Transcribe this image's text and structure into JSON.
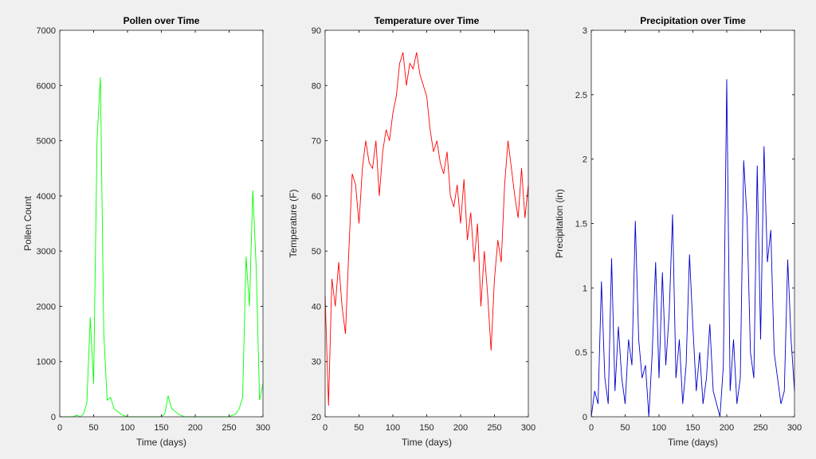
{
  "chart_data": [
    {
      "type": "line",
      "title": "Pollen over Time",
      "x_label": "Time (days)",
      "y_label": "Pollen Count",
      "x": [
        0,
        5,
        10,
        15,
        20,
        25,
        30,
        35,
        40,
        45,
        50,
        55,
        60,
        65,
        70,
        75,
        80,
        85,
        90,
        95,
        100,
        105,
        110,
        115,
        120,
        125,
        130,
        135,
        140,
        145,
        150,
        155,
        160,
        165,
        170,
        175,
        180,
        185,
        190,
        195,
        200,
        205,
        210,
        215,
        220,
        225,
        230,
        235,
        240,
        245,
        250,
        255,
        260,
        265,
        270,
        275,
        280,
        285,
        290,
        295,
        300
      ],
      "series": [
        {
          "color": "#00ff00",
          "values": [
            0,
            0,
            0,
            0,
            0,
            30,
            0,
            50,
            250,
            1800,
            600,
            5000,
            6150,
            1500,
            300,
            350,
            150,
            100,
            50,
            20,
            0,
            0,
            0,
            0,
            0,
            0,
            0,
            0,
            0,
            0,
            0,
            50,
            380,
            150,
            100,
            50,
            20,
            0,
            0,
            0,
            0,
            0,
            0,
            0,
            0,
            0,
            0,
            0,
            0,
            0,
            0,
            30,
            50,
            150,
            350,
            2900,
            2000,
            4100,
            2700,
            300,
            600
          ]
        }
      ],
      "xlim": [
        0,
        300
      ],
      "xticks": [
        0,
        50,
        100,
        150,
        200,
        250,
        300
      ],
      "ylim": [
        0,
        7000
      ],
      "yticks": [
        0,
        1000,
        2000,
        3000,
        4000,
        5000,
        6000,
        7000
      ]
    },
    {
      "type": "line",
      "title": "Temperature over Time",
      "x_label": "Time (days)",
      "y_label": "Temperature (F)",
      "x": [
        0,
        5,
        10,
        15,
        20,
        25,
        30,
        35,
        40,
        45,
        50,
        55,
        60,
        65,
        70,
        75,
        80,
        85,
        90,
        95,
        100,
        105,
        110,
        115,
        120,
        125,
        130,
        135,
        140,
        145,
        150,
        155,
        160,
        165,
        170,
        175,
        180,
        185,
        190,
        195,
        200,
        205,
        210,
        215,
        220,
        225,
        230,
        235,
        240,
        245,
        250,
        255,
        260,
        265,
        270,
        275,
        280,
        285,
        290,
        295,
        300
      ],
      "series": [
        {
          "color": "#ff0000",
          "values": [
            42,
            22,
            45,
            40,
            48,
            40,
            35,
            50,
            64,
            62,
            55,
            65,
            70,
            66,
            65,
            70,
            60,
            68,
            72,
            70,
            75,
            78,
            84,
            86,
            80,
            84,
            83,
            86,
            82,
            80,
            78,
            72,
            68,
            70,
            66,
            64,
            68,
            60,
            58,
            62,
            55,
            63,
            52,
            57,
            48,
            55,
            40,
            50,
            42,
            32,
            45,
            52,
            48,
            62,
            70,
            65,
            60,
            56,
            65,
            56,
            62
          ]
        }
      ],
      "xlim": [
        0,
        300
      ],
      "xticks": [
        0,
        50,
        100,
        150,
        200,
        250,
        300
      ],
      "ylim": [
        20,
        90
      ],
      "yticks": [
        20,
        30,
        40,
        50,
        60,
        70,
        80,
        90
      ]
    },
    {
      "type": "line",
      "title": "Precipitation over Time",
      "x_label": "Time (days)",
      "y_label": "Precipitation (in)",
      "x": [
        0,
        5,
        10,
        15,
        20,
        25,
        30,
        35,
        40,
        45,
        50,
        55,
        60,
        65,
        70,
        75,
        80,
        85,
        90,
        95,
        100,
        105,
        110,
        115,
        120,
        125,
        130,
        135,
        140,
        145,
        150,
        155,
        160,
        165,
        170,
        175,
        180,
        185,
        190,
        195,
        200,
        205,
        210,
        215,
        220,
        225,
        230,
        235,
        240,
        245,
        250,
        255,
        260,
        265,
        270,
        275,
        280,
        285,
        290,
        295,
        300
      ],
      "series": [
        {
          "color": "#0000cc",
          "values": [
            0,
            0.2,
            0.1,
            1.05,
            0.3,
            0.1,
            1.23,
            0.2,
            0.7,
            0.3,
            0.1,
            0.6,
            0.4,
            1.52,
            0.6,
            0.3,
            0.4,
            0,
            0.5,
            1.2,
            0.3,
            1.12,
            0.4,
            0.8,
            1.57,
            0.3,
            0.6,
            0.1,
            0.4,
            1.26,
            0.7,
            0.2,
            0.5,
            0.1,
            0.3,
            0.72,
            0.2,
            0.1,
            0,
            0.4,
            2.62,
            0.2,
            0.6,
            0.1,
            0.3,
            1.99,
            1.54,
            0.5,
            0.3,
            1.95,
            0.6,
            2.1,
            1.2,
            1.45,
            0.5,
            0.3,
            0.1,
            0.2,
            1.22,
            0.6,
            0.2
          ]
        }
      ],
      "xlim": [
        0,
        300
      ],
      "xticks": [
        0,
        50,
        100,
        150,
        200,
        250,
        300
      ],
      "ylim": [
        0,
        3
      ],
      "yticks": [
        0,
        0.5,
        1,
        1.5,
        2,
        2.5,
        3
      ]
    }
  ]
}
